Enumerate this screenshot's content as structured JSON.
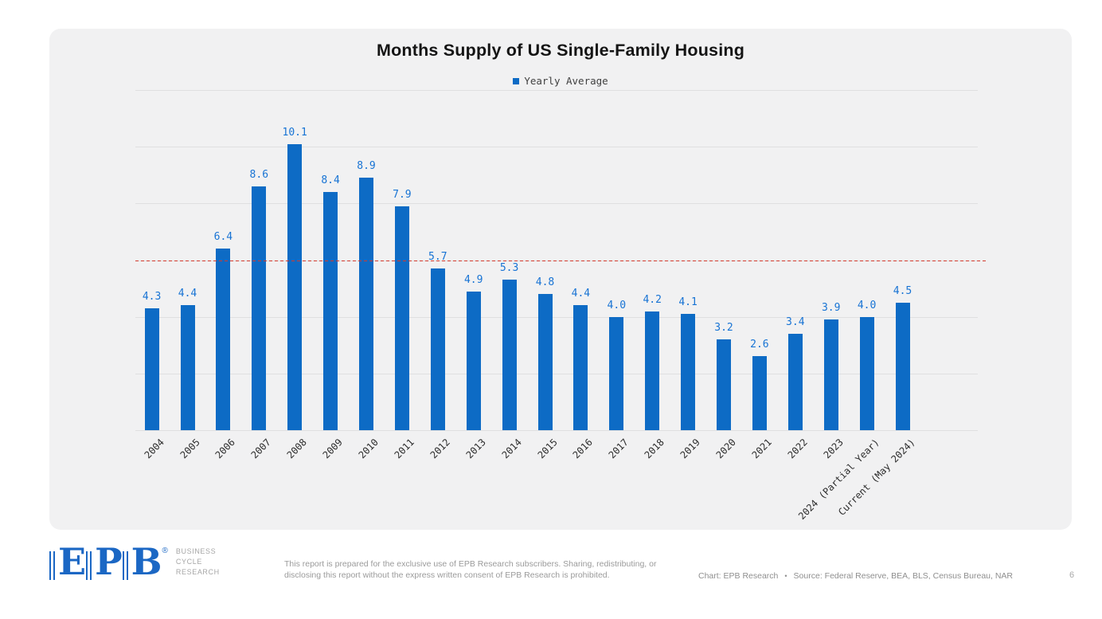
{
  "chart_data": {
    "type": "bar",
    "title": "Months Supply of US Single-Family Housing",
    "legend": {
      "label": "Yearly Average",
      "position": "top-center"
    },
    "categories": [
      "2004",
      "2005",
      "2006",
      "2007",
      "2008",
      "2009",
      "2010",
      "2011",
      "2012",
      "2013",
      "2014",
      "2015",
      "2016",
      "2017",
      "2018",
      "2019",
      "2020",
      "2021",
      "2022",
      "2023",
      "2024 (Partial Year)",
      "Current (May 2024)"
    ],
    "values": [
      4.3,
      4.4,
      6.4,
      8.6,
      10.1,
      8.4,
      8.9,
      7.9,
      5.7,
      4.9,
      5.3,
      4.8,
      4.4,
      4.0,
      4.2,
      4.1,
      3.2,
      2.6,
      3.4,
      3.9,
      4.0,
      4.5
    ],
    "xlabel": "",
    "ylabel": "",
    "ylim": [
      0,
      12
    ],
    "grid_values": [
      0,
      2,
      4,
      6,
      8,
      10,
      12
    ],
    "grid": "on",
    "reference_line": {
      "value": 6,
      "style": "dashed",
      "color": "#d23a2e"
    },
    "bar_color": "#0d6bc5",
    "label_color": "#1773d4",
    "value_labels_shown": true
  },
  "card": {
    "background": "#f1f1f2"
  },
  "footer": {
    "logo": {
      "letters": [
        "E",
        "P",
        "B"
      ],
      "registered_mark": "®",
      "subtext_lines": [
        "BUSINESS",
        "CYCLE",
        "RESEARCH"
      ],
      "color": "#1b67c4"
    },
    "disclaimer": "This report is prepared for the exclusive use of EPB Research subscribers. Sharing, redistributing, or disclosing this report without the express written consent of EPB Research is prohibited.",
    "attribution": {
      "chart_credit": "Chart: EPB Research",
      "separator": "•",
      "source": "Source: Federal Reserve, BEA, BLS, Census Bureau, NAR"
    },
    "page_number": "6"
  }
}
